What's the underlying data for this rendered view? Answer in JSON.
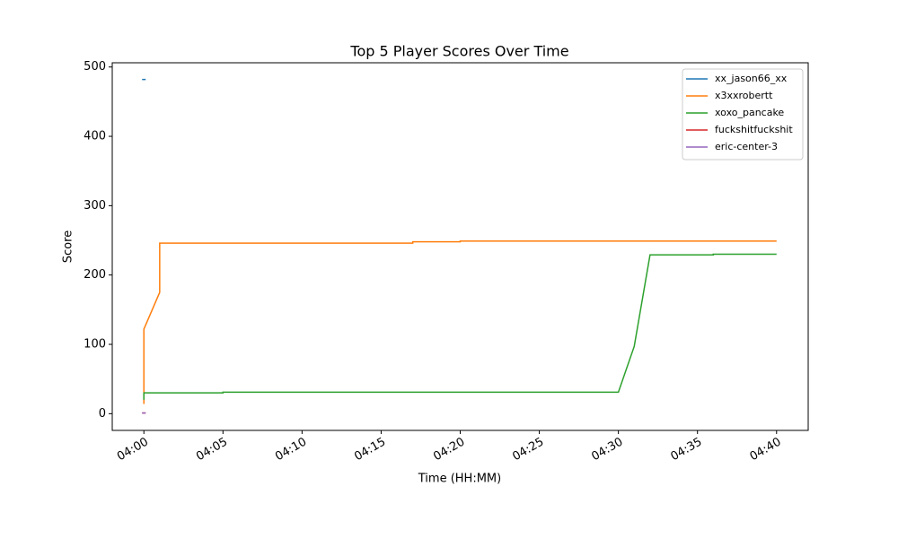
{
  "chart_data": {
    "type": "line",
    "title": "Top 5 Player Scores Over Time",
    "x_label": "Time (HH:MM)",
    "y_label": "Score",
    "xlim": [
      "03:58",
      "04:42"
    ],
    "xticks": [
      "04:00",
      "04:05",
      "04:10",
      "04:15",
      "04:20",
      "04:25",
      "04:30",
      "04:35",
      "04:40"
    ],
    "ylim": [
      -24.1,
      506.1
    ],
    "yticks": [
      0,
      100,
      200,
      300,
      400,
      500
    ],
    "grid": false,
    "legend": "upper right",
    "series": [
      {
        "name": "xx_jason66_xx",
        "color": "#1f77b4",
        "x": [
          "04:00"
        ],
        "values": [
          482
        ]
      },
      {
        "name": "x3xxrobertt",
        "color": "#ff7f0e",
        "x": [
          "04:00",
          "04:00",
          "04:01",
          "04:01",
          "04:17",
          "04:17",
          "04:20",
          "04:20",
          "04:40"
        ],
        "values": [
          14,
          122,
          175,
          246,
          246,
          248,
          248,
          249,
          249
        ]
      },
      {
        "name": "xoxo_pancake",
        "color": "#2ca02c",
        "x": [
          "04:00",
          "04:00",
          "04:05",
          "04:05",
          "04:30",
          "04:31",
          "04:32",
          "04:36",
          "04:36",
          "04:40"
        ],
        "values": [
          20,
          30,
          30,
          31,
          31,
          97,
          229,
          229,
          230,
          230
        ]
      },
      {
        "name": "fuckshitfuckshit",
        "color": "#d62728",
        "x": [
          "04:00"
        ],
        "values": [
          1
        ]
      },
      {
        "name": "eric-center-3",
        "color": "#9467bd",
        "x": [
          "04:00"
        ],
        "values": [
          1
        ]
      }
    ]
  }
}
